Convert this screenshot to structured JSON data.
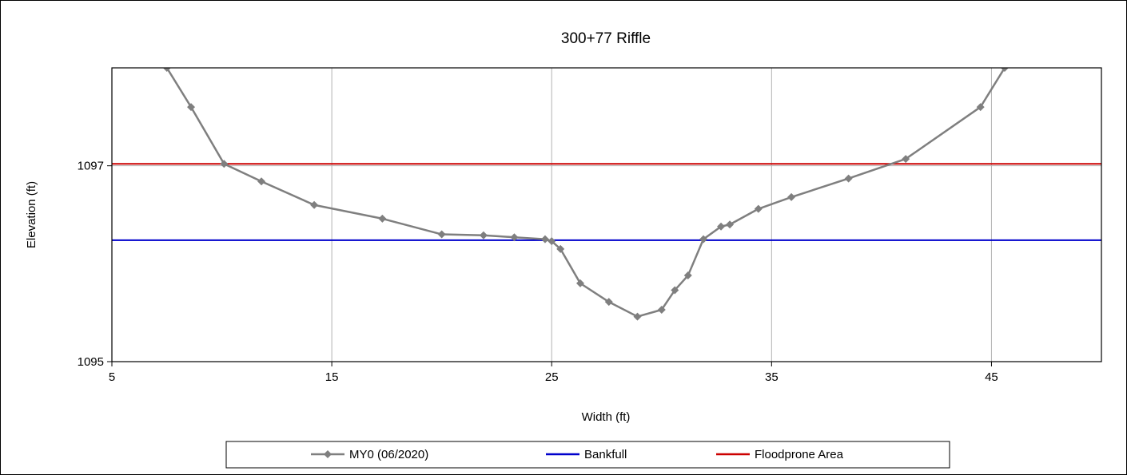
{
  "chart_data": {
    "type": "line",
    "title": "300+77 Riffle",
    "xlabel": "Width (ft)",
    "ylabel": "Elevation (ft)",
    "xlim": [
      5,
      50
    ],
    "ylim": [
      1095,
      1098
    ],
    "x_ticks": [
      5,
      15,
      25,
      35,
      45
    ],
    "y_ticks": [
      1095,
      1097
    ],
    "grid": "vertical",
    "legend_position": "bottom",
    "series": [
      {
        "name": "MY0 (06/2020)",
        "color": "#7f7f7f",
        "marker": "diamond",
        "x": [
          7.5,
          8.6,
          10.1,
          11.8,
          14.2,
          17.3,
          20.0,
          21.9,
          23.3,
          24.7,
          25.0,
          25.4,
          26.3,
          27.6,
          28.9,
          30.0,
          30.6,
          31.2,
          31.9,
          32.7,
          33.1,
          34.4,
          35.9,
          38.5,
          41.1,
          44.5,
          45.6
        ],
        "y": [
          1098.0,
          1097.6,
          1097.02,
          1096.84,
          1096.6,
          1096.46,
          1096.3,
          1096.29,
          1096.27,
          1096.25,
          1096.23,
          1096.15,
          1095.8,
          1095.61,
          1095.46,
          1095.53,
          1095.73,
          1095.88,
          1096.25,
          1096.38,
          1096.4,
          1096.56,
          1096.68,
          1096.87,
          1097.07,
          1097.6,
          1098.0
        ]
      },
      {
        "name": "Bankfull",
        "color": "#0000cc",
        "y_const": 1096.24
      },
      {
        "name": "Floodprone Area",
        "color": "#cc0000",
        "y_const": 1097.02
      }
    ]
  }
}
